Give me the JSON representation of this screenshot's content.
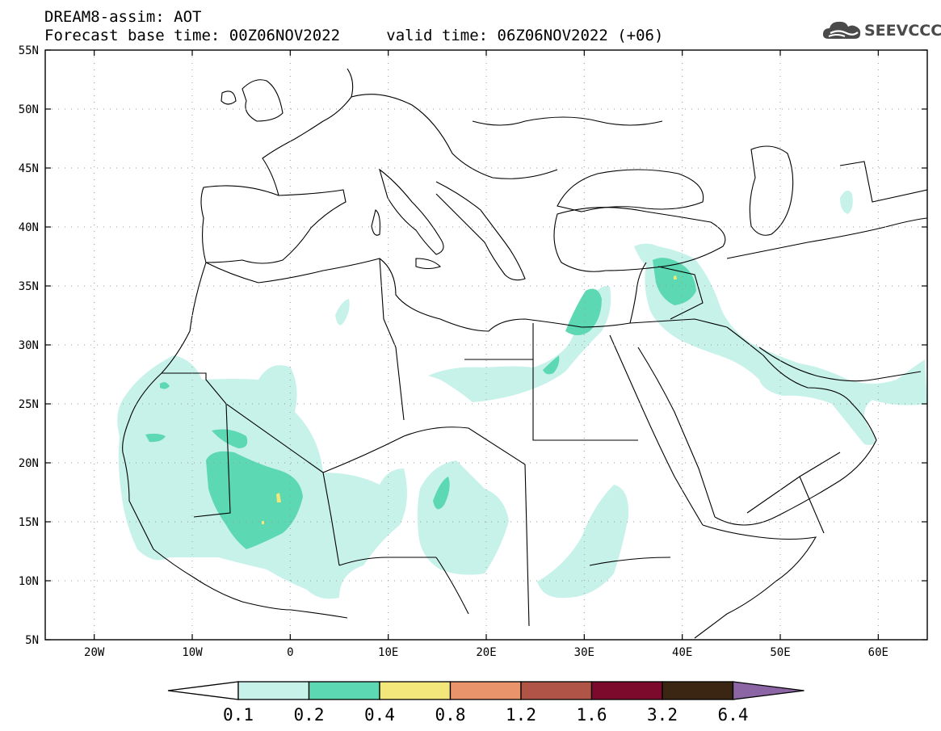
{
  "header": {
    "model": "DREAM8-assim: AOT",
    "base_time_label": "Forecast base time: 00Z06NOV2022",
    "valid_time_label": "valid time: 06Z06NOV2022 (+06)"
  },
  "logo": {
    "text": "SEEVCCC",
    "icon": "cloud-icon"
  },
  "map": {
    "lon_range": [
      -25,
      65
    ],
    "lat_range": [
      5,
      55
    ],
    "lat_labels": [
      "55N",
      "50N",
      "45N",
      "40N",
      "35N",
      "30N",
      "25N",
      "20N",
      "15N",
      "10N",
      "5N"
    ],
    "lon_labels": [
      "20W",
      "10W",
      "0",
      "10E",
      "20E",
      "30E",
      "40E",
      "50E",
      "60E"
    ],
    "grid": "dotted"
  },
  "colorbar": {
    "thresholds": [
      "0.1",
      "0.2",
      "0.4",
      "0.8",
      "1.2",
      "1.6",
      "3.2",
      "6.4"
    ],
    "colors": [
      "#ffffff",
      "#c7f2ea",
      "#5cd8b2",
      "#f3e67a",
      "#e9946a",
      "#b05448",
      "#7c0a2c",
      "#3b2614",
      "#8c66a4"
    ]
  },
  "aot_levels": {
    "0.1": "#c7f2ea",
    "0.2": "#5cd8b2",
    "0.4": "#f3e67a"
  }
}
